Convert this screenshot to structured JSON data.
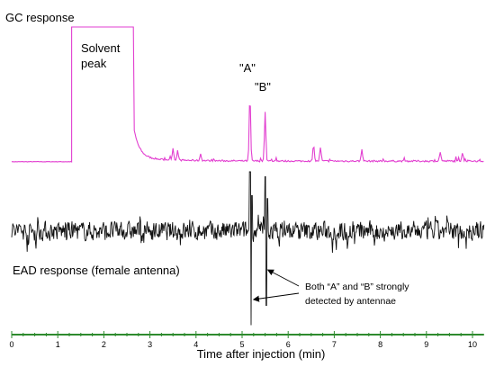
{
  "chart_data": {
    "type": "line",
    "xlabel": "Time after injection (min)",
    "xlim": [
      0,
      10.25
    ],
    "x_ticks": [
      "0",
      "1",
      "2",
      "3",
      "4",
      "5",
      "6",
      "7",
      "8",
      "9",
      "10"
    ],
    "axis_color": "#2e8b2e",
    "series": [
      {
        "name": "GC response",
        "color": "#e23fd0",
        "baseline_at": 0.0,
        "solvent_peak_range": [
          1.3,
          2.65
        ],
        "peaks": [
          {
            "x": 1.3,
            "y": 1.0,
            "kind": "solvent"
          },
          {
            "x": 3.5,
            "y": 0.09
          },
          {
            "x": 3.6,
            "y": 0.07
          },
          {
            "x": 4.1,
            "y": 0.05
          },
          {
            "x": 5.17,
            "y": 0.5
          },
          {
            "x": 5.5,
            "y": 0.37
          },
          {
            "x": 6.55,
            "y": 0.12
          },
          {
            "x": 6.7,
            "y": 0.1
          },
          {
            "x": 7.6,
            "y": 0.09
          },
          {
            "x": 9.3,
            "y": 0.07
          },
          {
            "x": 9.78,
            "y": 0.06
          }
        ]
      },
      {
        "name": "EAD response (female antenna)",
        "color": "#111111",
        "events": [
          {
            "x": 5.17,
            "min": -0.95,
            "max": 0.6
          },
          {
            "x": 5.5,
            "min": -0.75,
            "max": 0.55
          }
        ]
      }
    ],
    "annotations": {
      "gc_title": "GC response",
      "solvent_line1": "Solvent",
      "solvent_line2": "peak",
      "peak_a": "\"A\"",
      "peak_b": "\"B\"",
      "ead_title": "EAD response (female antenna)",
      "callout_line1": "Both “A” and “B” strongly",
      "callout_line2": "detected by antennae"
    }
  }
}
